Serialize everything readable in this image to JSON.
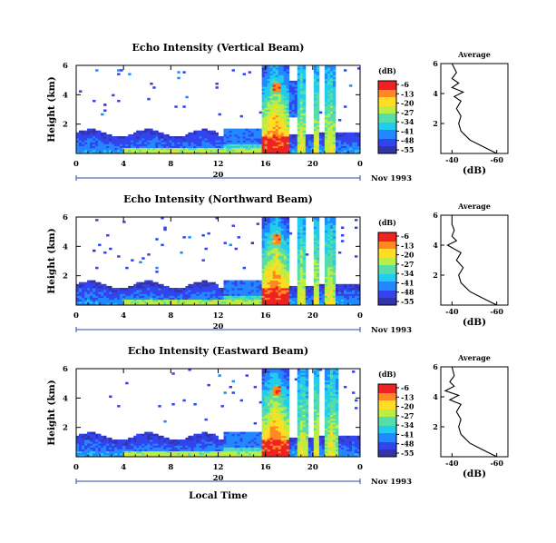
{
  "chart_data": [
    {
      "type": "heatmap",
      "title": "Echo Intensity (Vertical Beam)",
      "ylabel": "Height (km)",
      "xlabel": "",
      "x_ticks": [
        "0",
        "4",
        "8",
        "12",
        "16",
        "20",
        "0"
      ],
      "y_ticks": [
        "2",
        "4",
        "6"
      ],
      "xlim": [
        0,
        24
      ],
      "ylim": [
        0,
        6
      ],
      "date_label": "20",
      "month_label": "Nov 1993",
      "colorbar": {
        "unit": "(dB)",
        "ticks": [
          "-6",
          "-13",
          "-20",
          "-27",
          "-34",
          "-41",
          "-48",
          "-55"
        ]
      },
      "profile": {
        "title": "Average",
        "xlabel": "(dB)",
        "x_ticks": [
          "-40",
          "-60"
        ],
        "y_ticks": [
          "2",
          "4",
          "6"
        ],
        "height_km": [
          0.0,
          0.3,
          0.6,
          0.9,
          1.2,
          1.5,
          2.0,
          2.5,
          3.0,
          3.5,
          3.8,
          4.1,
          4.4,
          4.7,
          5.0,
          5.4,
          6.0
        ],
        "db": [
          -60,
          -56,
          -52,
          -48,
          -46,
          -44,
          -43,
          -44,
          -42,
          -44,
          -41,
          -45,
          -40,
          -43,
          -40,
          -42,
          -40
        ]
      }
    },
    {
      "type": "heatmap",
      "title": "Echo Intensity (Northward Beam)",
      "ylabel": "Height (km)",
      "xlabel": "",
      "x_ticks": [
        "0",
        "4",
        "8",
        "12",
        "16",
        "20",
        "0"
      ],
      "y_ticks": [
        "2",
        "4",
        "6"
      ],
      "xlim": [
        0,
        24
      ],
      "ylim": [
        0,
        6
      ],
      "date_label": "20",
      "month_label": "Nov 1993",
      "colorbar": {
        "unit": "(dB)",
        "ticks": [
          "-6",
          "-13",
          "-20",
          "-27",
          "-34",
          "-41",
          "-48",
          "-55"
        ]
      },
      "profile": {
        "title": "Average",
        "xlabel": "(dB)",
        "x_ticks": [
          "-40",
          "-60"
        ],
        "y_ticks": [
          "2",
          "4",
          "6"
        ],
        "height_km": [
          0.0,
          0.3,
          0.6,
          0.9,
          1.2,
          1.5,
          2.0,
          2.5,
          3.0,
          3.5,
          4.0,
          4.3,
          4.6,
          5.0,
          5.4,
          6.0
        ],
        "db": [
          -60,
          -56,
          -52,
          -48,
          -46,
          -44,
          -43,
          -45,
          -42,
          -44,
          -38,
          -42,
          -40,
          -41,
          -40,
          -40
        ]
      }
    },
    {
      "type": "heatmap",
      "title": "Echo Intensity (Eastward Beam)",
      "ylabel": "Height (km)",
      "xlabel": "Local Time",
      "x_ticks": [
        "0",
        "4",
        "8",
        "12",
        "16",
        "20",
        "0"
      ],
      "y_ticks": [
        "2",
        "4",
        "6"
      ],
      "xlim": [
        0,
        24
      ],
      "ylim": [
        0,
        6
      ],
      "date_label": "20",
      "month_label": "Nov 1993",
      "colorbar": {
        "unit": "(dB)",
        "ticks": [
          "-6",
          "-13",
          "-20",
          "-27",
          "-34",
          "-41",
          "-48",
          "-55"
        ]
      },
      "profile": {
        "title": "Average",
        "xlabel": "(dB)",
        "x_ticks": [
          "-40",
          "-60"
        ],
        "y_ticks": [
          "2",
          "4",
          "6"
        ],
        "height_km": [
          0.0,
          0.3,
          0.6,
          0.9,
          1.2,
          1.5,
          2.0,
          2.5,
          3.0,
          3.5,
          3.8,
          4.1,
          4.4,
          4.7,
          5.0,
          5.4,
          6.0
        ],
        "db": [
          -60,
          -56,
          -52,
          -48,
          -46,
          -44,
          -43,
          -44,
          -42,
          -44,
          -39,
          -43,
          -37,
          -41,
          -39,
          -41,
          -40
        ]
      }
    }
  ],
  "colormap": [
    "#3333aa",
    "#3344ee",
    "#2288ff",
    "#22ccee",
    "#55ddaa",
    "#bbee44",
    "#ffdd22",
    "#ff8822",
    "#ee2222"
  ]
}
